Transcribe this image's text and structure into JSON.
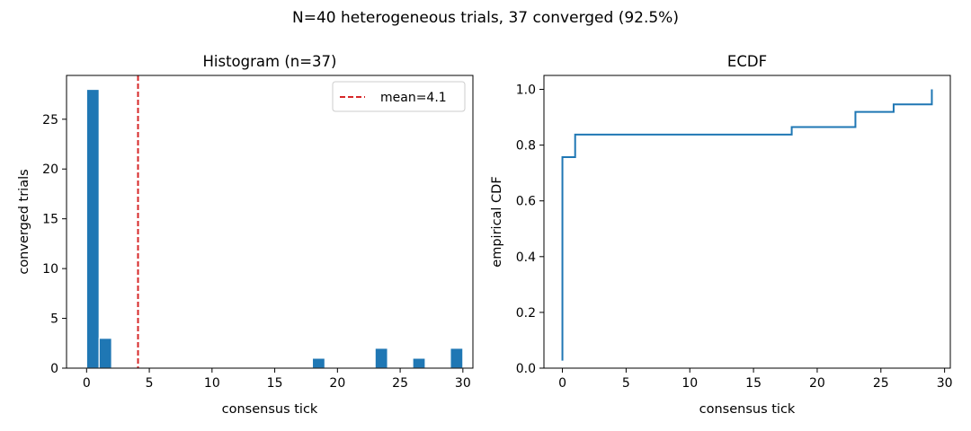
{
  "figure": {
    "suptitle": "N=40 heterogeneous trials, 37 converged (92.5%)"
  },
  "chart_data": [
    {
      "type": "bar",
      "title": "Histogram (n=37)",
      "xlabel": "consensus tick",
      "ylabel": "converged trials",
      "xlim": [
        -1.6,
        30.8
      ],
      "ylim": [
        0,
        29.4
      ],
      "xticks": [
        0,
        5,
        10,
        15,
        20,
        25,
        30
      ],
      "yticks": [
        0,
        5,
        10,
        15,
        20,
        25
      ],
      "bins": [
        {
          "x0": 0.0,
          "x1": 1.0,
          "count": 28
        },
        {
          "x0": 1.0,
          "x1": 2.0,
          "count": 3
        },
        {
          "x0": 18.0,
          "x1": 19.0,
          "count": 1
        },
        {
          "x0": 23.0,
          "x1": 24.0,
          "count": 2
        },
        {
          "x0": 26.0,
          "x1": 27.0,
          "count": 1
        },
        {
          "x0": 29.0,
          "x1": 30.0,
          "count": 2
        }
      ],
      "bar_color": "#1f77b4",
      "mean_line": {
        "x": 4.1,
        "label": "mean=4.1",
        "color": "#d62728",
        "style": "dashed"
      },
      "legend_placement": "top-right"
    },
    {
      "type": "line",
      "subtype": "step",
      "title": "ECDF",
      "xlabel": "consensus tick",
      "ylabel": "empirical CDF",
      "xlim": [
        -1.45,
        30.45
      ],
      "ylim": [
        0.0,
        1.05
      ],
      "xticks": [
        0,
        5,
        10,
        15,
        20,
        25,
        30
      ],
      "yticks": [
        0.0,
        0.2,
        0.4,
        0.6,
        0.8,
        1.0
      ],
      "ytick_labels": [
        "0.0",
        "0.2",
        "0.4",
        "0.6",
        "0.8",
        "1.0"
      ],
      "line_color": "#1f77b4",
      "points": [
        {
          "x": 0,
          "y": 0.027
        },
        {
          "x": 0,
          "y": 0.757
        },
        {
          "x": 1,
          "y": 0.757
        },
        {
          "x": 1,
          "y": 0.838
        },
        {
          "x": 18,
          "y": 0.838
        },
        {
          "x": 18,
          "y": 0.865
        },
        {
          "x": 23,
          "y": 0.865
        },
        {
          "x": 23,
          "y": 0.919
        },
        {
          "x": 26,
          "y": 0.919
        },
        {
          "x": 26,
          "y": 0.946
        },
        {
          "x": 29,
          "y": 0.946
        },
        {
          "x": 29,
          "y": 1.0
        }
      ]
    }
  ]
}
